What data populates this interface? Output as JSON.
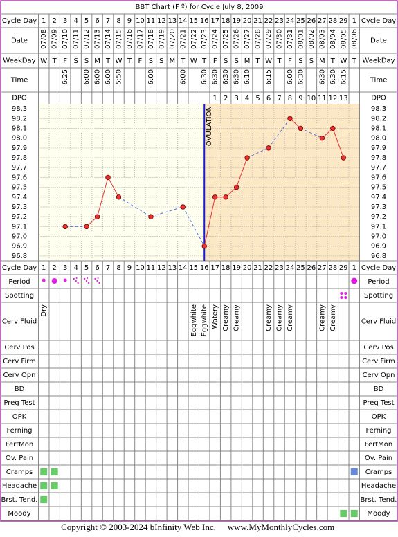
{
  "chart_data": {
    "type": "line",
    "title": "BBT Chart (F º) for Cycle July 8, 2009",
    "row_labels_top": [
      "Cycle Day",
      "Date",
      "WeekDay",
      "Time",
      "DPO"
    ],
    "row_labels_bottom": [
      "Cycle Day",
      "Period",
      "Spotting",
      "Cerv Fluid",
      "Cerv Pos",
      "Cerv Firm",
      "Cerv Opn",
      "BD",
      "Preg Test",
      "OPK",
      "Ferning",
      "FertMon",
      "Ov. Pain",
      "Cramps",
      "Headache",
      "Brst. Tend.",
      "Moody"
    ],
    "categories": [
      1,
      2,
      3,
      4,
      5,
      6,
      7,
      8,
      9,
      10,
      11,
      12,
      13,
      14,
      15,
      16,
      17,
      18,
      19,
      20,
      21,
      22,
      23,
      24,
      25,
      26,
      27,
      28,
      29,
      1
    ],
    "dates": [
      "07/08",
      "07/09",
      "07/10",
      "07/11",
      "07/12",
      "07/13",
      "07/14",
      "07/15",
      "07/16",
      "07/17",
      "07/18",
      "07/19",
      "07/20",
      "07/21",
      "07/22",
      "07/23",
      "07/24",
      "07/25",
      "07/26",
      "07/27",
      "07/28",
      "07/29",
      "07/30",
      "07/31",
      "08/01",
      "08/02",
      "08/03",
      "08/04",
      "08/05",
      "08/06"
    ],
    "weekdays": [
      "W",
      "T",
      "F",
      "S",
      "S",
      "M",
      "T",
      "W",
      "T",
      "F",
      "S",
      "S",
      "M",
      "T",
      "W",
      "T",
      "F",
      "S",
      "S",
      "M",
      "T",
      "W",
      "T",
      "F",
      "S",
      "S",
      "M",
      "T",
      "W",
      "T"
    ],
    "times": [
      null,
      null,
      "6:25",
      null,
      "6:00",
      "6:00",
      "6:00",
      "5:50",
      null,
      null,
      "6:00",
      null,
      null,
      "6:00",
      null,
      "6:30",
      "6:30",
      "6:30",
      "6:30",
      "6:10",
      null,
      "6:15",
      null,
      "6:00",
      "6:30",
      null,
      "6:30",
      "6:30",
      "6:15",
      null
    ],
    "dpo": [
      null,
      null,
      null,
      null,
      null,
      null,
      null,
      null,
      null,
      null,
      null,
      null,
      null,
      null,
      null,
      null,
      1,
      2,
      3,
      4,
      5,
      6,
      7,
      8,
      9,
      10,
      11,
      12,
      13,
      null
    ],
    "series": [
      {
        "name": "Temperature",
        "color": "#e63232",
        "values": [
          null,
          null,
          97.1,
          null,
          97.1,
          97.2,
          97.6,
          97.4,
          null,
          null,
          97.2,
          null,
          null,
          97.3,
          null,
          96.9,
          97.4,
          97.4,
          97.5,
          97.8,
          null,
          97.9,
          null,
          98.2,
          98.1,
          null,
          98.0,
          98.1,
          97.8,
          null
        ]
      }
    ],
    "cerv_fluid": [
      "Dry",
      null,
      null,
      null,
      null,
      null,
      null,
      null,
      null,
      null,
      null,
      null,
      null,
      null,
      "Eggwhite",
      "Eggwhite",
      "Watery",
      "Creamy",
      "Creamy",
      null,
      null,
      "Creamy",
      "Creamy",
      "Creamy",
      null,
      null,
      "Creamy",
      "Creamy",
      null,
      null
    ],
    "annotation": {
      "text": "OVULATION",
      "x": 16
    },
    "ylim": [
      96.75,
      98.35
    ],
    "yticks": [
      98.3,
      98.2,
      98.1,
      {
        "value": 98.0,
        "label": "98.0"
      },
      97.9,
      97.8,
      97.7,
      97.6,
      97.5,
      97.4,
      97.3,
      97.2,
      97.1,
      {
        "value": 97.0,
        "label": "97.0"
      },
      96.9,
      96.8
    ],
    "grid": true
  },
  "footer": {
    "copyright": "Copyright © 2003-2024 bInfinity Web Inc.",
    "site": "www.MyMonthlyCycles.com"
  }
}
